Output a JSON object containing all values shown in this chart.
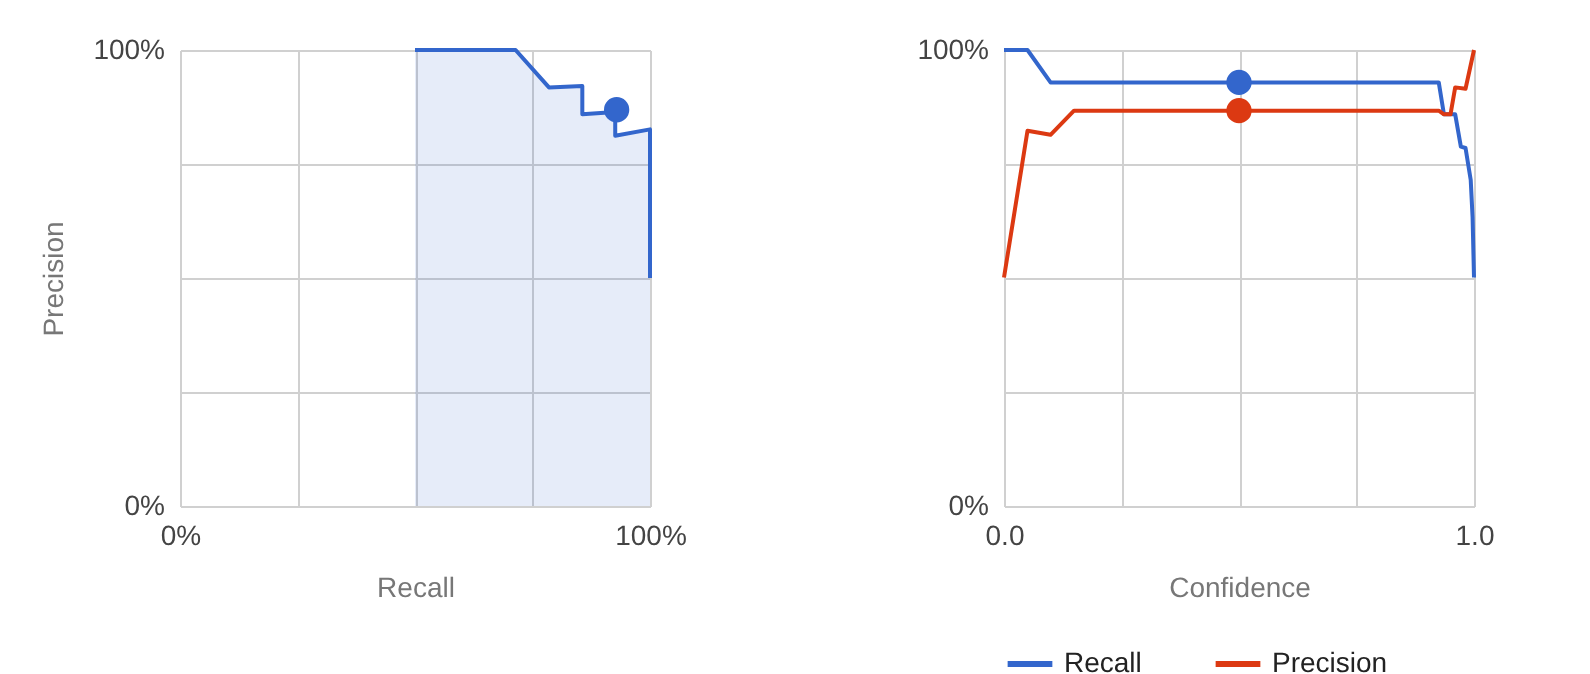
{
  "chart_data": [
    {
      "type": "line",
      "xlabel": "Recall",
      "ylabel": "Precision",
      "xlim": [
        0,
        100
      ],
      "ylim": [
        0,
        100
      ],
      "grid": true,
      "xticks": [
        {
          "value": 0,
          "label": "0%"
        },
        {
          "value": 25,
          "label": null
        },
        {
          "value": 50,
          "label": null
        },
        {
          "value": 75,
          "label": null
        },
        {
          "value": 100,
          "label": "100%"
        }
      ],
      "yticks": [
        {
          "value": 0,
          "label": "0%"
        },
        {
          "value": 25,
          "label": null
        },
        {
          "value": 50,
          "label": null
        },
        {
          "value": 75,
          "label": null
        },
        {
          "value": 100,
          "label": "100%"
        }
      ],
      "series": [
        {
          "type": "area",
          "color": "#3366cc",
          "x": [
            50,
            71.4,
            78.5,
            85.6,
            85.6,
            92.6,
            92.6,
            100,
            100
          ],
          "values": [
            100,
            100,
            91.8,
            92.1,
            85.9,
            86.4,
            81.2,
            82.6,
            50
          ]
        },
        {
          "type": "scatter",
          "marker": "circle",
          "color": "#3366cc",
          "x": [
            92.9
          ],
          "values": [
            86.9
          ]
        }
      ]
    },
    {
      "type": "line",
      "xlabel": "Confidence",
      "xlim": [
        0,
        1
      ],
      "ylim": [
        0,
        100
      ],
      "grid": true,
      "legend": "bottom",
      "xticks": [
        {
          "value": 0,
          "label": "0.0"
        },
        {
          "value": 0.25,
          "label": null
        },
        {
          "value": 0.5,
          "label": null
        },
        {
          "value": 0.75,
          "label": null
        },
        {
          "value": 1,
          "label": "1.0"
        }
      ],
      "yticks": [
        {
          "value": 0,
          "label": "0%"
        },
        {
          "value": 25,
          "label": null
        },
        {
          "value": 50,
          "label": null
        },
        {
          "value": 75,
          "label": null
        },
        {
          "value": 100,
          "label": "100%"
        }
      ],
      "series": [
        {
          "name": "Recall",
          "color": "#3366cc",
          "x": [
            0,
            0.05,
            0.099,
            0.925,
            0.936,
            0.96,
            0.972,
            0.982,
            0.993,
            0.997,
            1.0
          ],
          "values": [
            100,
            100,
            92.9,
            92.9,
            85.9,
            85.9,
            78.8,
            78.5,
            71.5,
            63.3,
            50.1
          ]
        },
        {
          "name": "Precision",
          "color": "#dc3912",
          "x": [
            0,
            0.05,
            0.099,
            0.149,
            0.925,
            0.936,
            0.95,
            0.96,
            0.982,
            1.0
          ],
          "values": [
            50.1,
            82.3,
            81.4,
            86.7,
            86.7,
            85.9,
            85.9,
            91.8,
            91.5,
            100
          ]
        },
        {
          "type": "scatter",
          "marker": "circle",
          "color": "#3366cc",
          "x": [
            0.5
          ],
          "values": [
            92.9
          ]
        },
        {
          "type": "scatter",
          "marker": "circle",
          "color": "#dc3912",
          "x": [
            0.5
          ],
          "values": [
            86.7
          ]
        }
      ]
    }
  ]
}
